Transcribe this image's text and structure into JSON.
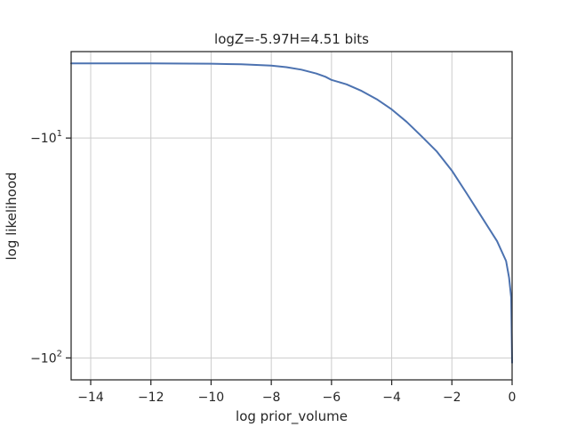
{
  "chart_data": {
    "type": "line",
    "title": "logZ=-5.97H=4.51 bits",
    "xlabel": "log prior_volume",
    "ylabel": "log likelihood",
    "xlim": [
      -14.65,
      0
    ],
    "ylim": [
      -125,
      -3.6
    ],
    "yscale": "symlog",
    "grid": true,
    "legend": "none",
    "x_ticks": [
      {
        "value": -14,
        "label": "−14"
      },
      {
        "value": -12,
        "label": "−12"
      },
      {
        "value": -10,
        "label": "−10"
      },
      {
        "value": -8,
        "label": "−8"
      },
      {
        "value": -6,
        "label": "−6"
      },
      {
        "value": -4,
        "label": "−4"
      },
      {
        "value": -2,
        "label": "−2"
      },
      {
        "value": 0,
        "label": "0"
      }
    ],
    "y_ticks": [
      {
        "value": -10,
        "label_base": "−10",
        "label_exp": "1"
      },
      {
        "value": -100,
        "label_base": "−10",
        "label_exp": "2"
      }
    ],
    "series": [
      {
        "color": "#4c72b0",
        "x": [
          -14.65,
          -12,
          -10,
          -9,
          -8,
          -7.5,
          -7,
          -6.5,
          -6.2,
          -6.0,
          -5.5,
          -5.0,
          -4.5,
          -4.0,
          -3.5,
          -3.0,
          -2.5,
          -2.0,
          -1.5,
          -1.0,
          -0.5,
          -0.2,
          -0.1,
          -0.03,
          0
        ],
        "y": [
          -4.18,
          -4.18,
          -4.2,
          -4.23,
          -4.3,
          -4.38,
          -4.52,
          -4.74,
          -4.93,
          -5.12,
          -5.4,
          -5.84,
          -6.43,
          -7.24,
          -8.35,
          -9.83,
          -11.6,
          -14.28,
          -18.3,
          -23.5,
          -30.1,
          -37,
          -44,
          -54,
          -105
        ]
      }
    ]
  }
}
